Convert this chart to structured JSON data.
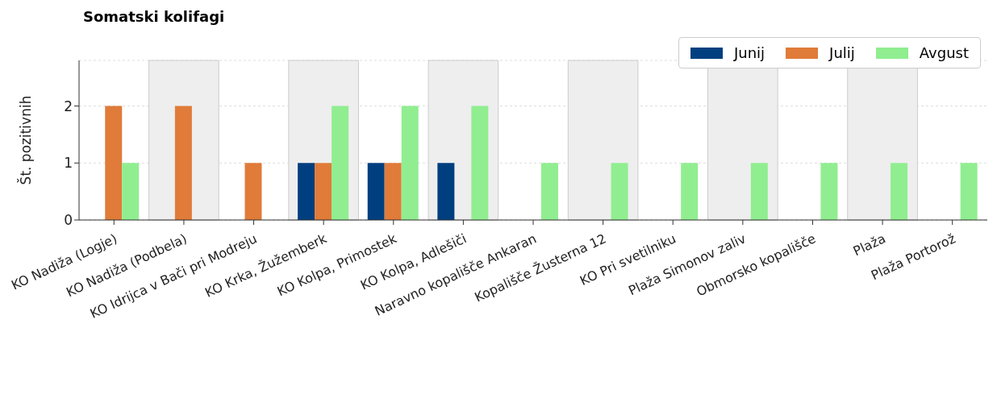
{
  "chart_data": {
    "type": "bar",
    "title": "Somatski kolifagi",
    "ylabel": "Št. pozitivnih",
    "categories": [
      "KO Nadiža (Logje)",
      "KO Nadiža (Podbela)",
      "KO Idrijca v Bači pri Modreju",
      "KO Krka, Žužemberk",
      "KO Kolpa, Primostek",
      "KO Kolpa, Adlešiči",
      "Naravno kopališče Ankaran",
      "Kopališče Žusterna 12",
      "KO Pri svetilniku",
      "Plaža Simonov zaliv",
      "Obmorsko kopališče",
      "Plaža",
      "Plaža Portorož"
    ],
    "series": [
      {
        "name": "Junij",
        "color": "#003f7f",
        "values": [
          0,
          0,
          0,
          1,
          1,
          1,
          0,
          0,
          0,
          0,
          0,
          0,
          0
        ]
      },
      {
        "name": "Julij",
        "color": "#e07b39",
        "values": [
          2,
          2,
          1,
          1,
          1,
          0,
          0,
          0,
          0,
          0,
          0,
          0,
          0
        ]
      },
      {
        "name": "Avgust",
        "color": "#90ee90",
        "values": [
          1,
          0,
          0,
          2,
          2,
          2,
          1,
          1,
          1,
          1,
          1,
          1,
          1
        ]
      }
    ],
    "ylim": [
      0,
      2.8
    ],
    "yticks": [
      0,
      1,
      2
    ],
    "grid": "y",
    "legend": "top right",
    "bands": [
      {
        "axis": "x",
        "from": "KO Nadiža (Podbela)",
        "to": "KO Nadiža (Podbela)",
        "color": "#eeeeee"
      },
      {
        "axis": "x",
        "from": "KO Krka, Žužemberk",
        "to": "KO Krka, Žužemberk",
        "color": "#eeeeee"
      },
      {
        "axis": "x",
        "from": "KO Kolpa, Adlešiči",
        "to": "KO Kolpa, Adlešiči",
        "color": "#eeeeee"
      },
      {
        "axis": "x",
        "from": "Kopališče Žusterna 12",
        "to": "Kopališče Žusterna 12",
        "color": "#eeeeee"
      },
      {
        "axis": "x",
        "from": "Plaža Simonov zaliv",
        "to": "Plaža Simonov zaliv",
        "color": "#eeeeee"
      },
      {
        "axis": "x",
        "from": "Plaža",
        "to": "Plaža",
        "color": "#eeeeee"
      }
    ]
  }
}
